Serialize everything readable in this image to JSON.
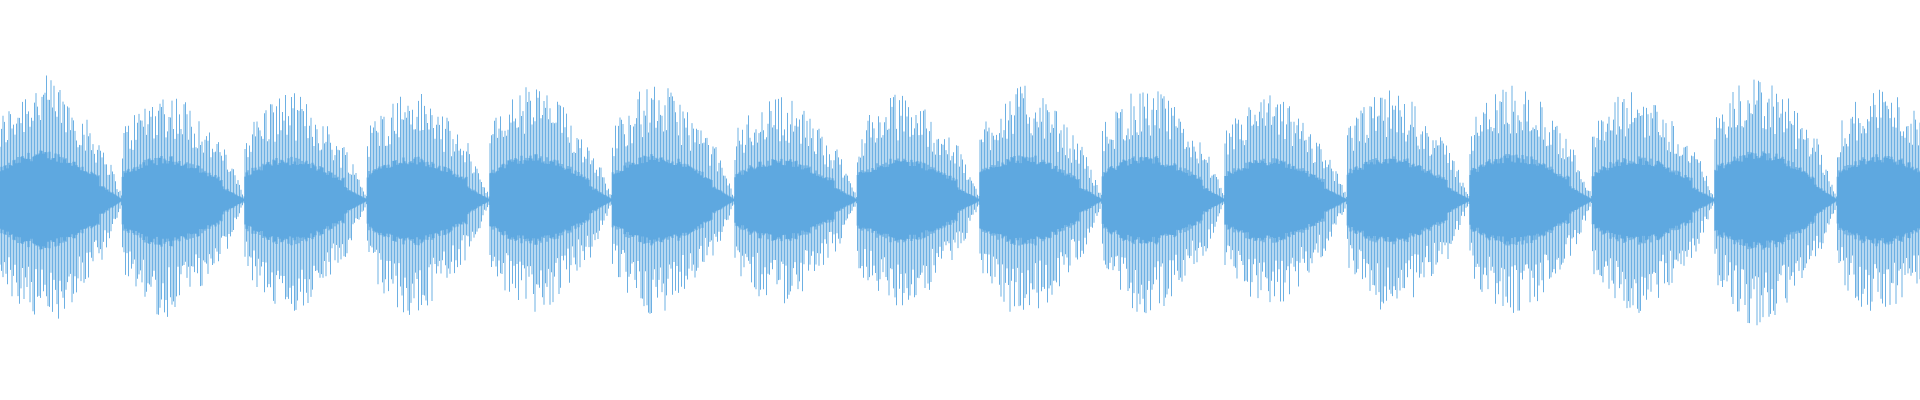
{
  "waveform": {
    "color": "#5ea8e0",
    "background": "#ffffff",
    "pulse_count": 16,
    "pulses": [
      {
        "peak": 0.97,
        "trough": 0.97
      },
      {
        "peak": 0.86,
        "trough": 0.91
      },
      {
        "peak": 0.84,
        "trough": 0.88
      },
      {
        "peak": 0.86,
        "trough": 0.9
      },
      {
        "peak": 0.9,
        "trough": 0.88
      },
      {
        "peak": 0.9,
        "trough": 0.89
      },
      {
        "peak": 0.82,
        "trough": 0.82
      },
      {
        "peak": 0.83,
        "trough": 0.85
      },
      {
        "peak": 0.89,
        "trough": 0.91
      },
      {
        "peak": 0.88,
        "trough": 0.89
      },
      {
        "peak": 0.82,
        "trough": 0.84
      },
      {
        "peak": 0.86,
        "trough": 0.87
      },
      {
        "peak": 0.91,
        "trough": 0.9
      },
      {
        "peak": 0.86,
        "trough": 0.88
      },
      {
        "peak": 0.97,
        "trough": 0.99
      },
      {
        "peak": 0.9,
        "trough": 0.91
      }
    ],
    "last_pulse_visible_fraction": 0.7
  }
}
